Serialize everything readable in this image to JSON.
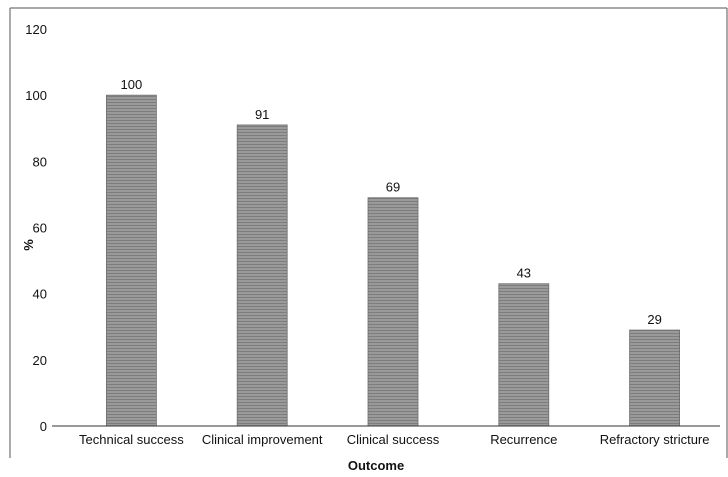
{
  "chart_data": {
    "type": "bar",
    "title": "",
    "xlabel": "Outcome",
    "ylabel": "%",
    "categories": [
      "Technical success",
      "Clinical improvement",
      "Clinical success",
      "Recurrence",
      "Refractory stricture"
    ],
    "values": [
      100,
      91,
      69,
      43,
      29
    ],
    "data_labels": [
      "100",
      "91",
      "69",
      "43",
      "29"
    ],
    "ylim": [
      0,
      120
    ],
    "yticks": [
      "0",
      "20",
      "40",
      "60",
      "80",
      "100",
      "120"
    ],
    "grid": false,
    "legend": "none",
    "colors": {
      "bar_fill": "#9a9a9a",
      "bar_stripe": "#7d7d7d",
      "bar_edge": "#6e6e6e",
      "axis": "#333333",
      "frame": "#555555",
      "text": "#111111"
    }
  }
}
